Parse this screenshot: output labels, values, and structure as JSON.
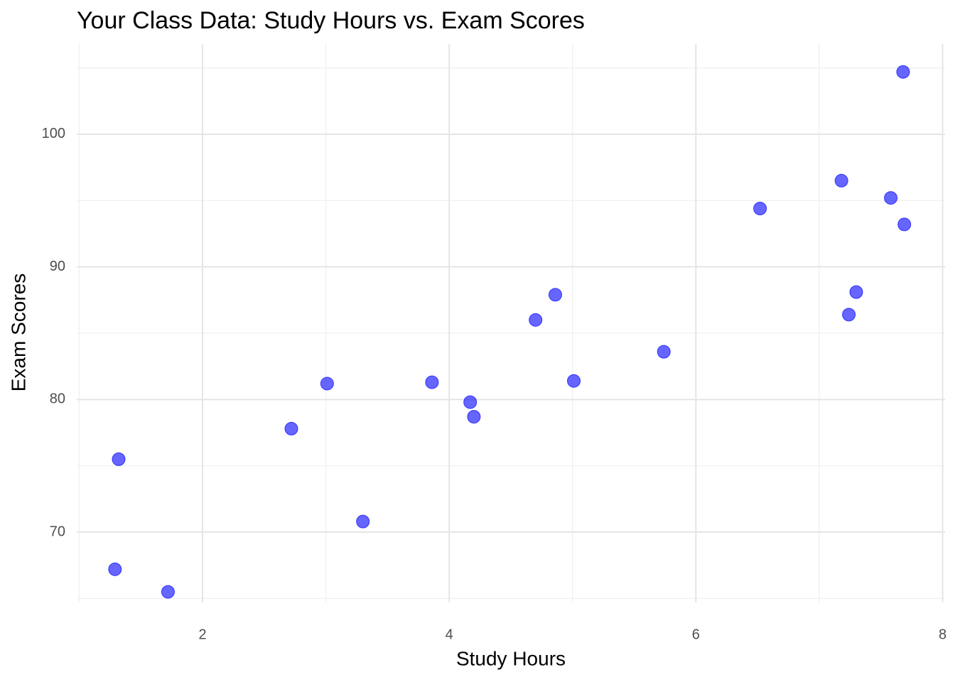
{
  "chart_data": {
    "type": "scatter",
    "title": "Your Class Data: Study Hours vs. Exam Scores",
    "x_label": "Study Hours",
    "y_label": "Exam Scores",
    "color": "#0000ff",
    "x": [
      7.68,
      7.18,
      7.58,
      7.69,
      6.52,
      7.3,
      7.24,
      4.86,
      4.7,
      5.74,
      5.01,
      3.86,
      3.01,
      4.17,
      4.2,
      2.72,
      1.32,
      3.3,
      1.29,
      1.72
    ],
    "values": [
      104.7,
      96.5,
      95.2,
      93.2,
      94.4,
      88.1,
      86.4,
      87.9,
      86.0,
      83.6,
      81.4,
      81.3,
      81.2,
      79.8,
      78.7,
      77.8,
      75.5,
      70.8,
      67.2,
      65.5
    ],
    "xlim": [
      0.98,
      8.02
    ],
    "xticks": [
      2,
      4,
      6,
      8
    ],
    "ylim": [
      64.7,
      106.8
    ],
    "yticks": [
      70,
      80,
      90,
      100
    ],
    "grid": true
  }
}
